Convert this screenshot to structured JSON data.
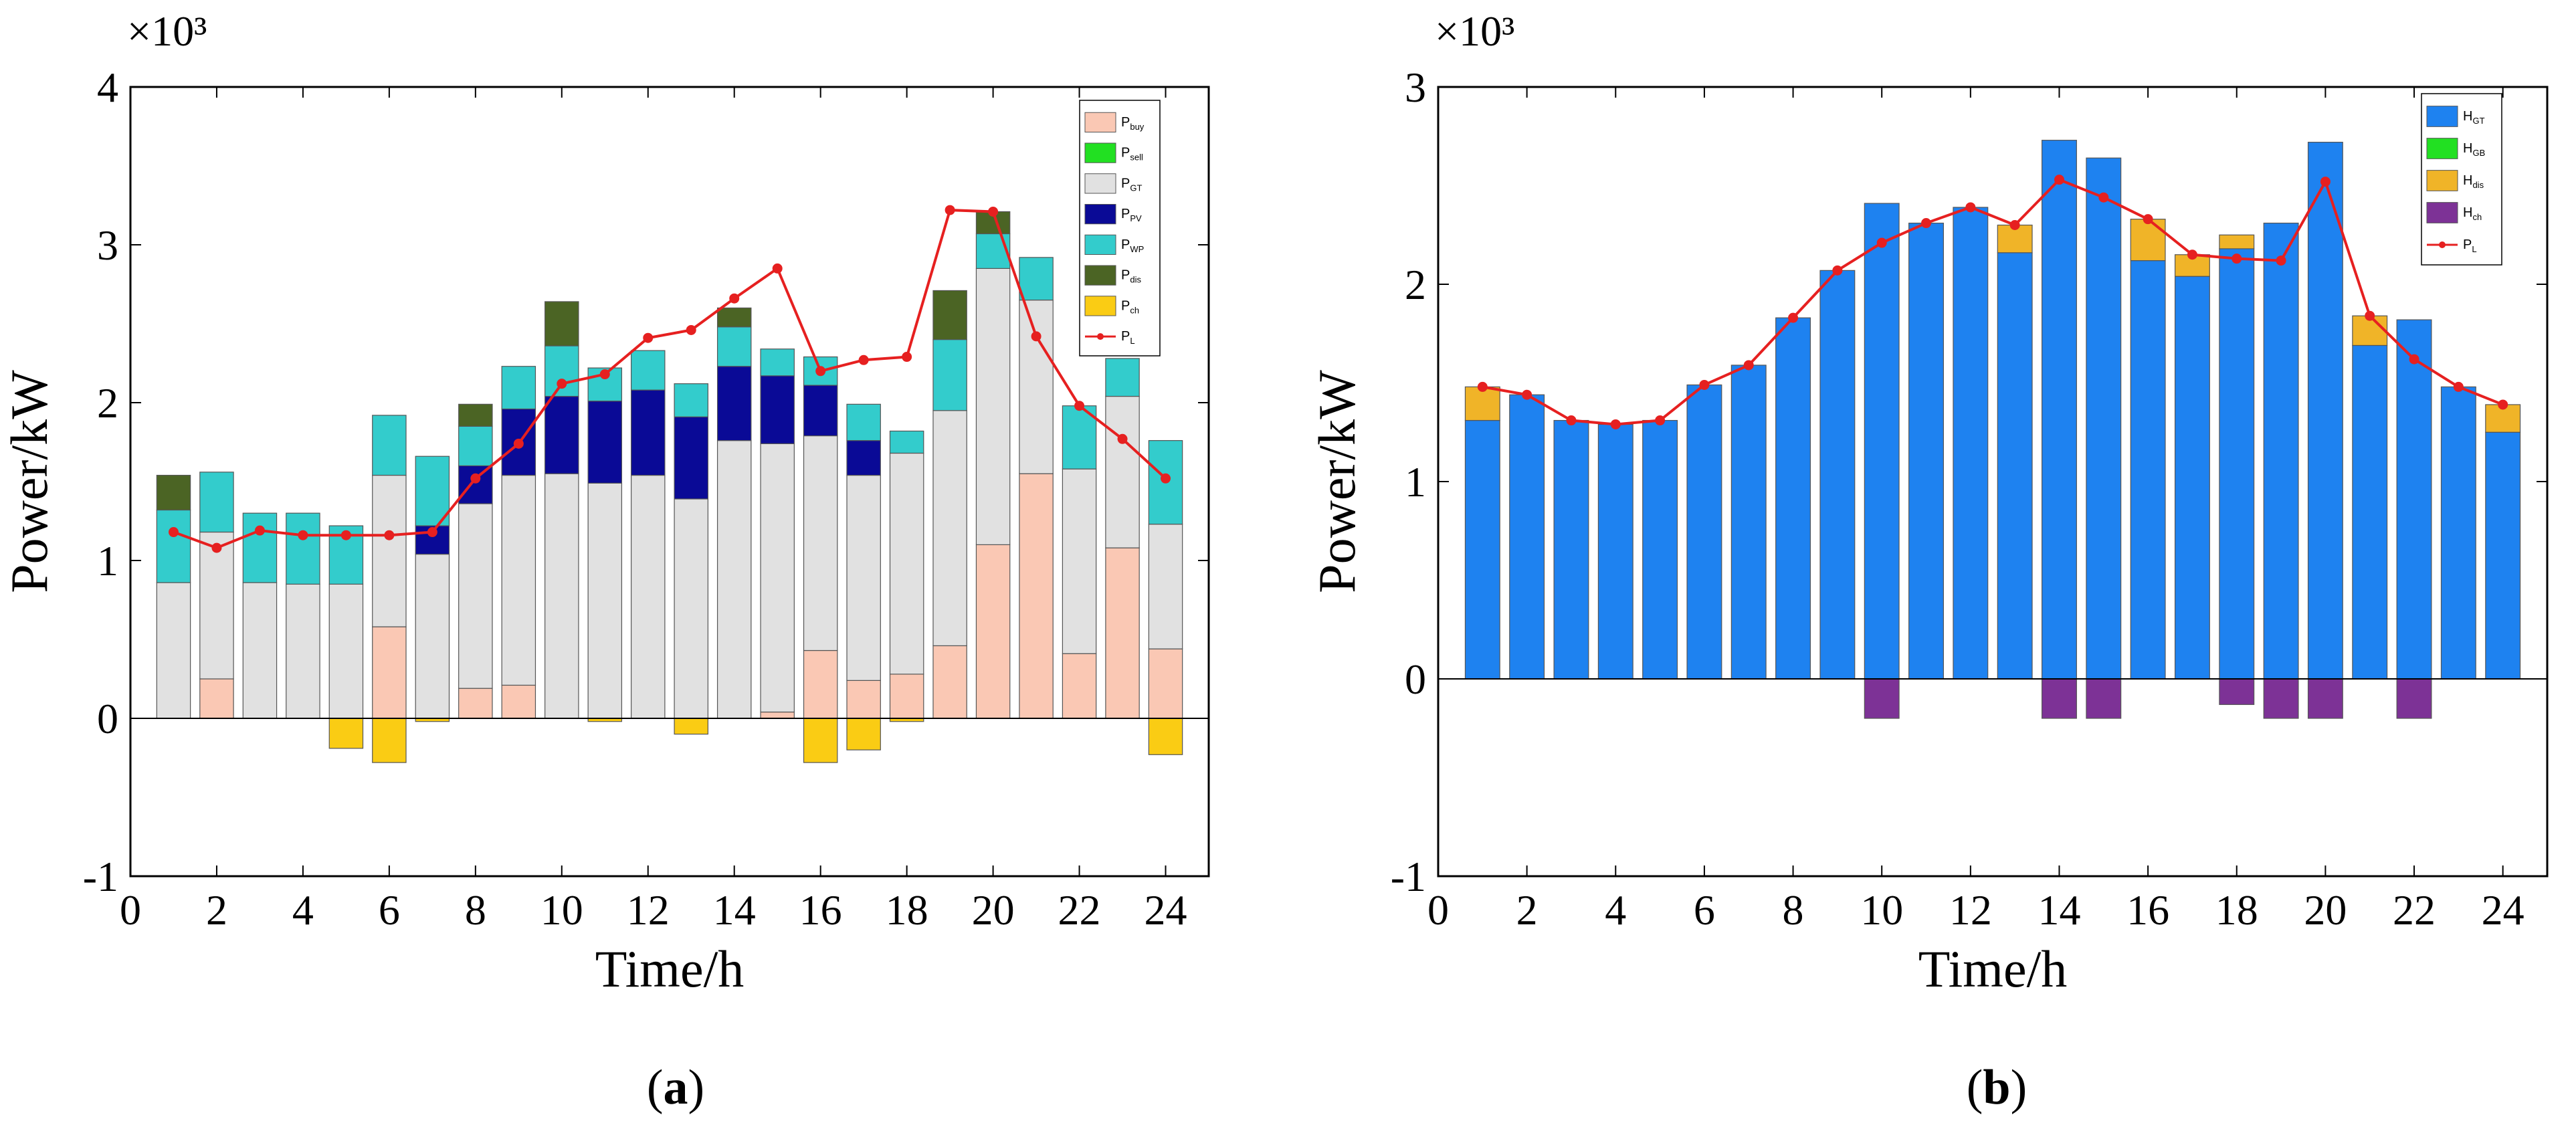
{
  "chart_data": [
    {
      "type": "bar",
      "panel_label": "(a)",
      "title": "",
      "xlabel": "Time/h",
      "ylabel": "Power/kW",
      "y_exponent": "×10³",
      "xlim": [
        0,
        25
      ],
      "ylim": [
        -1,
        4
      ],
      "x_ticks": [
        "0",
        "2",
        "4",
        "6",
        "8",
        "10",
        "12",
        "14",
        "16",
        "18",
        "20",
        "22",
        "24"
      ],
      "y_ticks": [
        "-1",
        "0",
        "1",
        "2",
        "3",
        "4"
      ],
      "legend_position": "top-right",
      "categories": [
        1,
        2,
        3,
        4,
        5,
        6,
        7,
        8,
        9,
        10,
        11,
        12,
        13,
        14,
        15,
        16,
        17,
        18,
        19,
        20,
        21,
        22,
        23,
        24
      ],
      "series": [
        {
          "name": "P_buy",
          "sub": "buy",
          "base": "P",
          "color": "#FAC8B4",
          "values": [
            0,
            0.25,
            0,
            0,
            0,
            0.58,
            0,
            0.19,
            0.21,
            0,
            0,
            0,
            0,
            0,
            0.04,
            0.43,
            0.24,
            0.28,
            0.46,
            1.1,
            1.55,
            0.41,
            1.08,
            0.44
          ]
        },
        {
          "name": "P_sell",
          "sub": "sell",
          "base": "P",
          "color": "#22E022",
          "values": [
            0,
            0,
            0,
            0,
            0,
            0,
            0,
            0,
            0,
            0,
            0,
            0,
            0,
            0,
            0,
            0,
            0,
            0,
            0,
            0,
            0,
            0,
            0,
            0
          ]
        },
        {
          "name": "P_GT",
          "sub": "GT",
          "base": "P",
          "color": "#E1E1E1",
          "values": [
            0.86,
            0.93,
            0.86,
            0.85,
            0.85,
            0.96,
            1.04,
            1.17,
            1.33,
            1.55,
            1.49,
            1.54,
            1.39,
            1.76,
            1.7,
            1.36,
            1.3,
            1.4,
            1.49,
            1.75,
            1.1,
            1.17,
            0.96,
            0.79
          ]
        },
        {
          "name": "P_PV",
          "sub": "PV",
          "base": "P",
          "color": "#0A0A96",
          "values": [
            0,
            0,
            0,
            0,
            0,
            0,
            0.18,
            0.24,
            0.42,
            0.49,
            0.52,
            0.54,
            0.52,
            0.47,
            0.43,
            0.32,
            0.22,
            0,
            0,
            0,
            0,
            0,
            0,
            0
          ]
        },
        {
          "name": "P_WP",
          "sub": "WP",
          "base": "P",
          "color": "#33CCCC",
          "values": [
            0.46,
            0.38,
            0.44,
            0.45,
            0.37,
            0.38,
            0.44,
            0.25,
            0.27,
            0.32,
            0.21,
            0.25,
            0.21,
            0.25,
            0.17,
            0.18,
            0.23,
            0.14,
            0.45,
            0.22,
            0.27,
            0.4,
            0.24,
            0.53
          ]
        },
        {
          "name": "P_dis",
          "sub": "dis",
          "base": "P",
          "color": "#4B6424",
          "values": [
            0.22,
            0,
            0,
            0,
            0,
            0,
            0,
            0.14,
            0,
            0.28,
            0,
            0,
            0,
            0.12,
            0,
            0,
            0,
            0,
            0.31,
            0.14,
            0,
            0,
            0,
            0
          ]
        },
        {
          "name": "P_ch",
          "sub": "ch",
          "base": "P",
          "color": "#FACC14",
          "values": [
            0,
            0,
            0,
            0,
            -0.19,
            -0.28,
            -0.02,
            0,
            0,
            0,
            -0.02,
            0,
            -0.1,
            0,
            0,
            -0.28,
            -0.2,
            -0.02,
            0,
            0,
            0,
            0,
            0,
            -0.23
          ]
        },
        {
          "name": "P_L",
          "sub": "L",
          "base": "P",
          "color": "#E62020",
          "kind": "line",
          "values": [
            1.18,
            1.08,
            1.19,
            1.16,
            1.16,
            1.16,
            1.18,
            1.52,
            1.74,
            2.12,
            2.18,
            2.41,
            2.46,
            2.66,
            2.85,
            2.2,
            2.27,
            2.29,
            3.22,
            3.21,
            2.42,
            1.98,
            1.77,
            1.52
          ]
        }
      ]
    },
    {
      "type": "bar",
      "panel_label": "(b)",
      "title": "",
      "xlabel": "Time/h",
      "ylabel": "Power/kW",
      "y_exponent": "×10³",
      "xlim": [
        0,
        25
      ],
      "ylim": [
        -1,
        3
      ],
      "x_ticks": [
        "0",
        "2",
        "4",
        "6",
        "8",
        "10",
        "12",
        "14",
        "16",
        "18",
        "20",
        "22",
        "24"
      ],
      "y_ticks": [
        "-1",
        "0",
        "1",
        "2",
        "3"
      ],
      "legend_position": "top-right",
      "categories": [
        1,
        2,
        3,
        4,
        5,
        6,
        7,
        8,
        9,
        10,
        11,
        12,
        13,
        14,
        15,
        16,
        17,
        18,
        19,
        20,
        21,
        22,
        23,
        24
      ],
      "series": [
        {
          "name": "H_GT",
          "sub": "GT",
          "base": "H",
          "color": "#1E82F0",
          "values": [
            1.31,
            1.44,
            1.31,
            1.29,
            1.31,
            1.49,
            1.59,
            1.83,
            2.07,
            2.41,
            2.31,
            2.39,
            2.16,
            2.73,
            2.64,
            2.12,
            2.04,
            2.18,
            2.31,
            2.72,
            1.69,
            1.82,
            1.48,
            1.25
          ]
        },
        {
          "name": "H_GB",
          "sub": "GB",
          "base": "H",
          "color": "#22E022",
          "values": [
            0,
            0,
            0,
            0,
            0,
            0,
            0,
            0,
            0,
            0,
            0,
            0,
            0,
            0,
            0,
            0,
            0,
            0,
            0,
            0,
            0,
            0,
            0,
            0
          ]
        },
        {
          "name": "H_dis",
          "sub": "dis",
          "base": "H",
          "color": "#F0B428",
          "values": [
            0.17,
            0,
            0,
            0,
            0,
            0,
            0,
            0,
            0,
            0,
            0,
            0,
            0.14,
            0,
            0,
            0.21,
            0.11,
            0.07,
            0,
            0,
            0.15,
            0,
            0,
            0.14
          ]
        },
        {
          "name": "H_ch",
          "sub": "ch",
          "base": "H",
          "color": "#7D3296",
          "values": [
            0,
            0,
            0,
            0,
            0,
            0,
            0,
            0,
            0,
            -0.2,
            0,
            0,
            0,
            -0.2,
            -0.2,
            0,
            0,
            -0.13,
            -0.2,
            -0.2,
            0,
            -0.2,
            0,
            0
          ]
        },
        {
          "name": "P_L",
          "sub": "L",
          "base": "P",
          "color": "#E62020",
          "kind": "line",
          "values": [
            1.48,
            1.44,
            1.31,
            1.29,
            1.31,
            1.49,
            1.59,
            1.83,
            2.07,
            2.21,
            2.31,
            2.39,
            2.3,
            2.53,
            2.44,
            2.33,
            2.15,
            2.13,
            2.12,
            2.52,
            1.84,
            1.62,
            1.48,
            1.39
          ]
        }
      ]
    }
  ]
}
